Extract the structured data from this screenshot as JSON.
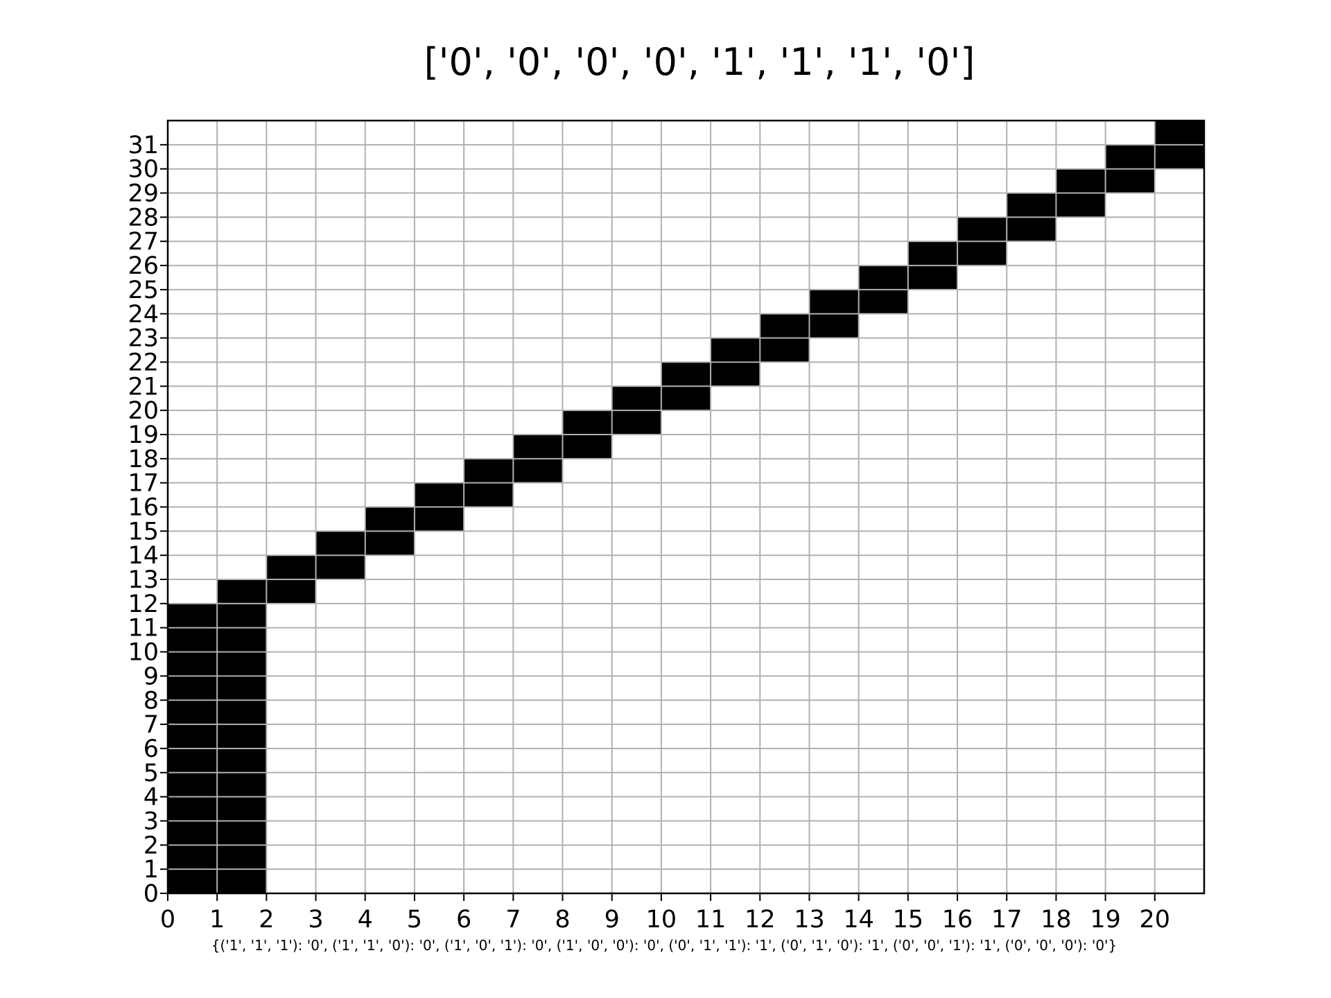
{
  "chart_data": {
    "type": "heatmap",
    "title": "['0', '0', '0', '0', '1', '1', '1', '0']",
    "caption": "{('1', '1', '1'): '0', ('1', '1', '0'): '0', ('1', '0', '1'): '0', ('1', '0', '0'): '0', ('0', '1', '1'): '1', ('0', '1', '0'): '1', ('0', '0', '1'): '1', ('0', '0', '0'): '0'}",
    "xlim": [
      0,
      21
    ],
    "ylim": [
      0,
      32
    ],
    "x_ticks": [
      "0",
      "1",
      "2",
      "3",
      "4",
      "5",
      "6",
      "7",
      "8",
      "9",
      "10",
      "11",
      "12",
      "13",
      "14",
      "15",
      "16",
      "17",
      "18",
      "19",
      "20"
    ],
    "y_ticks": [
      "0",
      "1",
      "2",
      "3",
      "4",
      "5",
      "6",
      "7",
      "8",
      "9",
      "10",
      "11",
      "12",
      "13",
      "14",
      "15",
      "16",
      "17",
      "18",
      "19",
      "20",
      "21",
      "22",
      "23",
      "24",
      "25",
      "26",
      "27",
      "28",
      "29",
      "30",
      "31"
    ],
    "grid": true,
    "colors": {
      "filled": "#000000",
      "empty": "#ffffff",
      "grid": "#b0b0b0",
      "axis": "#000000"
    },
    "filled_cells": [
      [
        0,
        0
      ],
      [
        1,
        0
      ],
      [
        0,
        1
      ],
      [
        1,
        1
      ],
      [
        0,
        2
      ],
      [
        1,
        2
      ],
      [
        0,
        3
      ],
      [
        1,
        3
      ],
      [
        0,
        4
      ],
      [
        1,
        4
      ],
      [
        0,
        5
      ],
      [
        1,
        5
      ],
      [
        0,
        6
      ],
      [
        1,
        6
      ],
      [
        0,
        7
      ],
      [
        1,
        7
      ],
      [
        0,
        8
      ],
      [
        1,
        8
      ],
      [
        0,
        9
      ],
      [
        1,
        9
      ],
      [
        0,
        10
      ],
      [
        1,
        10
      ],
      [
        0,
        11
      ],
      [
        1,
        11
      ],
      [
        1,
        12
      ],
      [
        2,
        12
      ],
      [
        2,
        13
      ],
      [
        3,
        13
      ],
      [
        3,
        14
      ],
      [
        4,
        14
      ],
      [
        4,
        15
      ],
      [
        5,
        15
      ],
      [
        5,
        16
      ],
      [
        6,
        16
      ],
      [
        6,
        17
      ],
      [
        7,
        17
      ],
      [
        7,
        18
      ],
      [
        8,
        18
      ],
      [
        8,
        19
      ],
      [
        9,
        19
      ],
      [
        9,
        20
      ],
      [
        10,
        20
      ],
      [
        10,
        21
      ],
      [
        11,
        21
      ],
      [
        11,
        22
      ],
      [
        12,
        22
      ],
      [
        12,
        23
      ],
      [
        13,
        23
      ],
      [
        13,
        24
      ],
      [
        14,
        24
      ],
      [
        14,
        25
      ],
      [
        15,
        25
      ],
      [
        15,
        26
      ],
      [
        16,
        26
      ],
      [
        16,
        27
      ],
      [
        17,
        27
      ],
      [
        17,
        28
      ],
      [
        18,
        28
      ],
      [
        18,
        29
      ],
      [
        19,
        29
      ],
      [
        19,
        30
      ],
      [
        20,
        30
      ],
      [
        20,
        31
      ]
    ]
  }
}
